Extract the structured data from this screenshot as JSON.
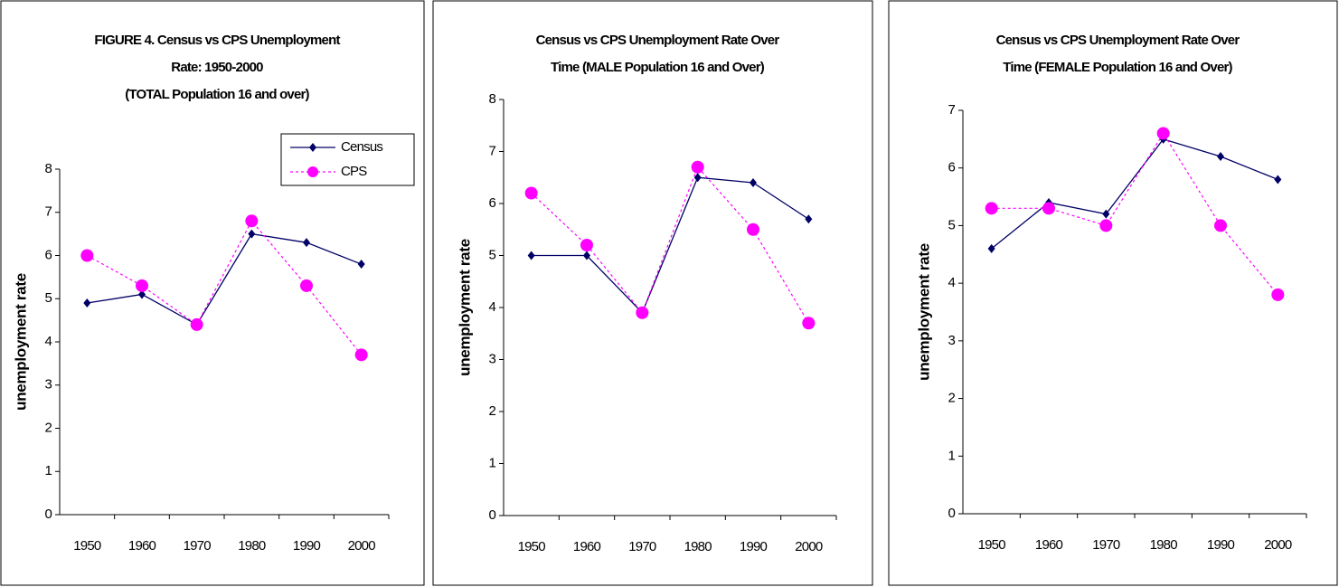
{
  "chart_data": [
    {
      "type": "line",
      "title": [
        "FIGURE 4. Census vs CPS Unemployment",
        "Rate: 1950-2000",
        "(TOTAL Population 16 and over)"
      ],
      "y_label": "unemployment rate",
      "categories": [
        "1950",
        "1960",
        "1970",
        "1980",
        "1990",
        "2000"
      ],
      "series": [
        {
          "name": "Census",
          "color": "#000066",
          "values": [
            4.9,
            5.1,
            4.4,
            6.5,
            6.3,
            5.8
          ]
        },
        {
          "name": "CPS",
          "color": "#ff00ff",
          "values": [
            6.0,
            5.3,
            4.4,
            6.8,
            5.3,
            3.7
          ]
        }
      ],
      "ylim": [
        0,
        8
      ],
      "yticks": [
        0,
        1,
        2,
        3,
        4,
        5,
        6,
        7,
        8
      ],
      "grid": false,
      "legend": "upper right"
    },
    {
      "type": "line",
      "title": [
        "Census vs CPS Unemployment Rate Over",
        "Time (MALE Population 16 and Over)"
      ],
      "y_label": "unemployment rate",
      "categories": [
        "1950",
        "1960",
        "1970",
        "1980",
        "1990",
        "2000"
      ],
      "series": [
        {
          "name": "Census",
          "color": "#000066",
          "values": [
            5.0,
            5.0,
            3.9,
            6.5,
            6.4,
            5.7
          ]
        },
        {
          "name": "CPS",
          "color": "#ff00ff",
          "values": [
            6.2,
            5.2,
            3.9,
            6.7,
            5.5,
            3.7
          ]
        }
      ],
      "ylim": [
        0,
        8
      ],
      "yticks": [
        0,
        1,
        2,
        3,
        4,
        5,
        6,
        7,
        8
      ],
      "grid": false
    },
    {
      "type": "line",
      "title": [
        "Census vs CPS Unemployment Rate Over",
        "Time (FEMALE Population 16 and Over)"
      ],
      "y_label": "unemployment rate",
      "categories": [
        "1950",
        "1960",
        "1970",
        "1980",
        "1990",
        "2000"
      ],
      "series": [
        {
          "name": "Census",
          "color": "#000066",
          "values": [
            4.6,
            5.4,
            5.2,
            6.5,
            6.2,
            5.8
          ]
        },
        {
          "name": "CPS",
          "color": "#ff00ff",
          "values": [
            5.3,
            5.3,
            5.0,
            6.6,
            5.0,
            3.8
          ]
        }
      ],
      "ylim": [
        0,
        7
      ],
      "yticks": [
        0,
        1,
        2,
        3,
        4,
        5,
        6,
        7
      ],
      "grid": false
    }
  ]
}
